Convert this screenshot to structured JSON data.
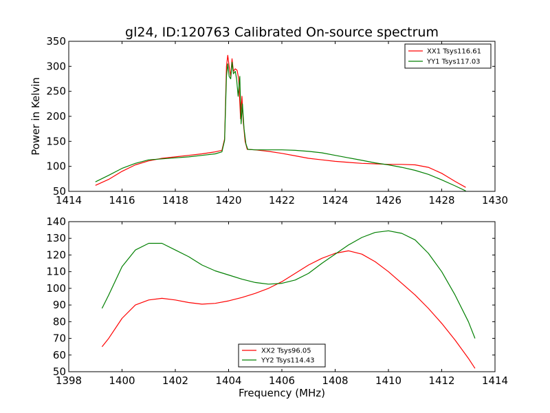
{
  "chart_data": [
    {
      "type": "line",
      "title": "gl24, ID:120763 Calibrated On-source spectrum",
      "xlabel": "",
      "ylabel": "Power in Kelvin",
      "xlim": [
        1414,
        1430
      ],
      "ylim": [
        50,
        350
      ],
      "xticks": [
        1414,
        1416,
        1418,
        1420,
        1422,
        1424,
        1426,
        1428,
        1430
      ],
      "yticks": [
        50,
        100,
        150,
        200,
        250,
        300,
        350
      ],
      "legend_position": "upper-right",
      "series": [
        {
          "name": "XX1 Tsys116.61",
          "color": "#ff0000",
          "points": [
            [
              1415.0,
              62
            ],
            [
              1415.5,
              74
            ],
            [
              1416.0,
              90
            ],
            [
              1416.5,
              103
            ],
            [
              1417.0,
              111
            ],
            [
              1417.5,
              116
            ],
            [
              1418.0,
              119
            ],
            [
              1418.5,
              122
            ],
            [
              1419.0,
              125
            ],
            [
              1419.5,
              129
            ],
            [
              1419.75,
              132
            ],
            [
              1419.85,
              155
            ],
            [
              1419.92,
              300
            ],
            [
              1419.97,
              322
            ],
            [
              1420.02,
              300
            ],
            [
              1420.08,
              280
            ],
            [
              1420.13,
              315
            ],
            [
              1420.18,
              290
            ],
            [
              1420.25,
              295
            ],
            [
              1420.32,
              292
            ],
            [
              1420.38,
              275
            ],
            [
              1420.45,
              195
            ],
            [
              1420.5,
              240
            ],
            [
              1420.55,
              190
            ],
            [
              1420.62,
              150
            ],
            [
              1420.7,
              134
            ],
            [
              1421.0,
              133
            ],
            [
              1421.5,
              130
            ],
            [
              1422.0,
              126
            ],
            [
              1422.5,
              121
            ],
            [
              1423.0,
              116
            ],
            [
              1423.5,
              113
            ],
            [
              1424.0,
              110
            ],
            [
              1424.5,
              108
            ],
            [
              1425.0,
              106
            ],
            [
              1425.5,
              105
            ],
            [
              1426.0,
              104
            ],
            [
              1426.5,
              104
            ],
            [
              1427.0,
              103
            ],
            [
              1427.5,
              98
            ],
            [
              1428.0,
              86
            ],
            [
              1428.5,
              70
            ],
            [
              1428.9,
              58
            ]
          ]
        },
        {
          "name": "YY1 Tsys117.03",
          "color": "#007f00",
          "points": [
            [
              1415.0,
              69
            ],
            [
              1415.5,
              82
            ],
            [
              1416.0,
              96
            ],
            [
              1416.5,
              106
            ],
            [
              1417.0,
              113
            ],
            [
              1417.5,
              115
            ],
            [
              1418.0,
              117
            ],
            [
              1418.5,
              119
            ],
            [
              1419.0,
              122
            ],
            [
              1419.5,
              125
            ],
            [
              1419.75,
              129
            ],
            [
              1419.85,
              152
            ],
            [
              1419.92,
              280
            ],
            [
              1419.97,
              305
            ],
            [
              1420.02,
              280
            ],
            [
              1420.08,
              275
            ],
            [
              1420.13,
              308
            ],
            [
              1420.18,
              285
            ],
            [
              1420.25,
              290
            ],
            [
              1420.3,
              275
            ],
            [
              1420.36,
              240
            ],
            [
              1420.42,
              280
            ],
            [
              1420.47,
              185
            ],
            [
              1420.52,
              225
            ],
            [
              1420.58,
              175
            ],
            [
              1420.65,
              145
            ],
            [
              1420.72,
              134
            ],
            [
              1421.0,
              133
            ],
            [
              1421.5,
              133
            ],
            [
              1422.0,
              133
            ],
            [
              1422.5,
              132
            ],
            [
              1423.0,
              130
            ],
            [
              1423.5,
              127
            ],
            [
              1424.0,
              122
            ],
            [
              1424.5,
              117
            ],
            [
              1425.0,
              112
            ],
            [
              1425.5,
              107
            ],
            [
              1426.0,
              103
            ],
            [
              1426.5,
              98
            ],
            [
              1427.0,
              92
            ],
            [
              1427.5,
              84
            ],
            [
              1428.0,
              73
            ],
            [
              1428.5,
              61
            ],
            [
              1428.9,
              51
            ]
          ]
        }
      ]
    },
    {
      "type": "line",
      "title": "",
      "xlabel": "Frequency (MHz)",
      "ylabel": "",
      "xlim": [
        1398,
        1414
      ],
      "ylim": [
        50,
        140
      ],
      "xticks": [
        1398,
        1400,
        1402,
        1404,
        1406,
        1408,
        1410,
        1412,
        1414
      ],
      "yticks": [
        50,
        60,
        70,
        80,
        90,
        100,
        110,
        120,
        130,
        140
      ],
      "legend_position": "lower-center",
      "series": [
        {
          "name": "XX2 Tsys96.05",
          "color": "#ff0000",
          "points": [
            [
              1399.25,
              65
            ],
            [
              1399.5,
              70
            ],
            [
              1400.0,
              82
            ],
            [
              1400.5,
              90
            ],
            [
              1401.0,
              93
            ],
            [
              1401.5,
              94
            ],
            [
              1402.0,
              93
            ],
            [
              1402.5,
              91.5
            ],
            [
              1403.0,
              90.5
            ],
            [
              1403.5,
              91
            ],
            [
              1404.0,
              92.5
            ],
            [
              1404.5,
              94.5
            ],
            [
              1405.0,
              97
            ],
            [
              1405.5,
              100
            ],
            [
              1406.0,
              104
            ],
            [
              1406.5,
              109
            ],
            [
              1407.0,
              114
            ],
            [
              1407.5,
              118
            ],
            [
              1408.0,
              121
            ],
            [
              1408.5,
              122.5
            ],
            [
              1409.0,
              120.5
            ],
            [
              1409.5,
              116
            ],
            [
              1410.0,
              110
            ],
            [
              1410.5,
              103
            ],
            [
              1411.0,
              96
            ],
            [
              1411.5,
              88
            ],
            [
              1412.0,
              79
            ],
            [
              1412.5,
              69
            ],
            [
              1413.0,
              58
            ],
            [
              1413.25,
              52
            ]
          ]
        },
        {
          "name": "YY2 Tsys114.43",
          "color": "#007f00",
          "points": [
            [
              1399.25,
              88
            ],
            [
              1399.5,
              96
            ],
            [
              1400.0,
              113
            ],
            [
              1400.5,
              123
            ],
            [
              1401.0,
              127
            ],
            [
              1401.5,
              127
            ],
            [
              1402.0,
              123
            ],
            [
              1402.5,
              119
            ],
            [
              1403.0,
              114
            ],
            [
              1403.5,
              110.5
            ],
            [
              1404.0,
              108
            ],
            [
              1404.5,
              105.5
            ],
            [
              1405.0,
              103.5
            ],
            [
              1405.5,
              102.5
            ],
            [
              1406.0,
              103
            ],
            [
              1406.5,
              105
            ],
            [
              1407.0,
              109
            ],
            [
              1407.5,
              115
            ],
            [
              1408.0,
              120.5
            ],
            [
              1408.5,
              126
            ],
            [
              1409.0,
              130.5
            ],
            [
              1409.5,
              133.5
            ],
            [
              1410.0,
              134.5
            ],
            [
              1410.5,
              133
            ],
            [
              1411.0,
              129
            ],
            [
              1411.5,
              121
            ],
            [
              1412.0,
              110
            ],
            [
              1412.5,
              96
            ],
            [
              1413.0,
              80
            ],
            [
              1413.25,
              70
            ]
          ]
        }
      ]
    }
  ]
}
